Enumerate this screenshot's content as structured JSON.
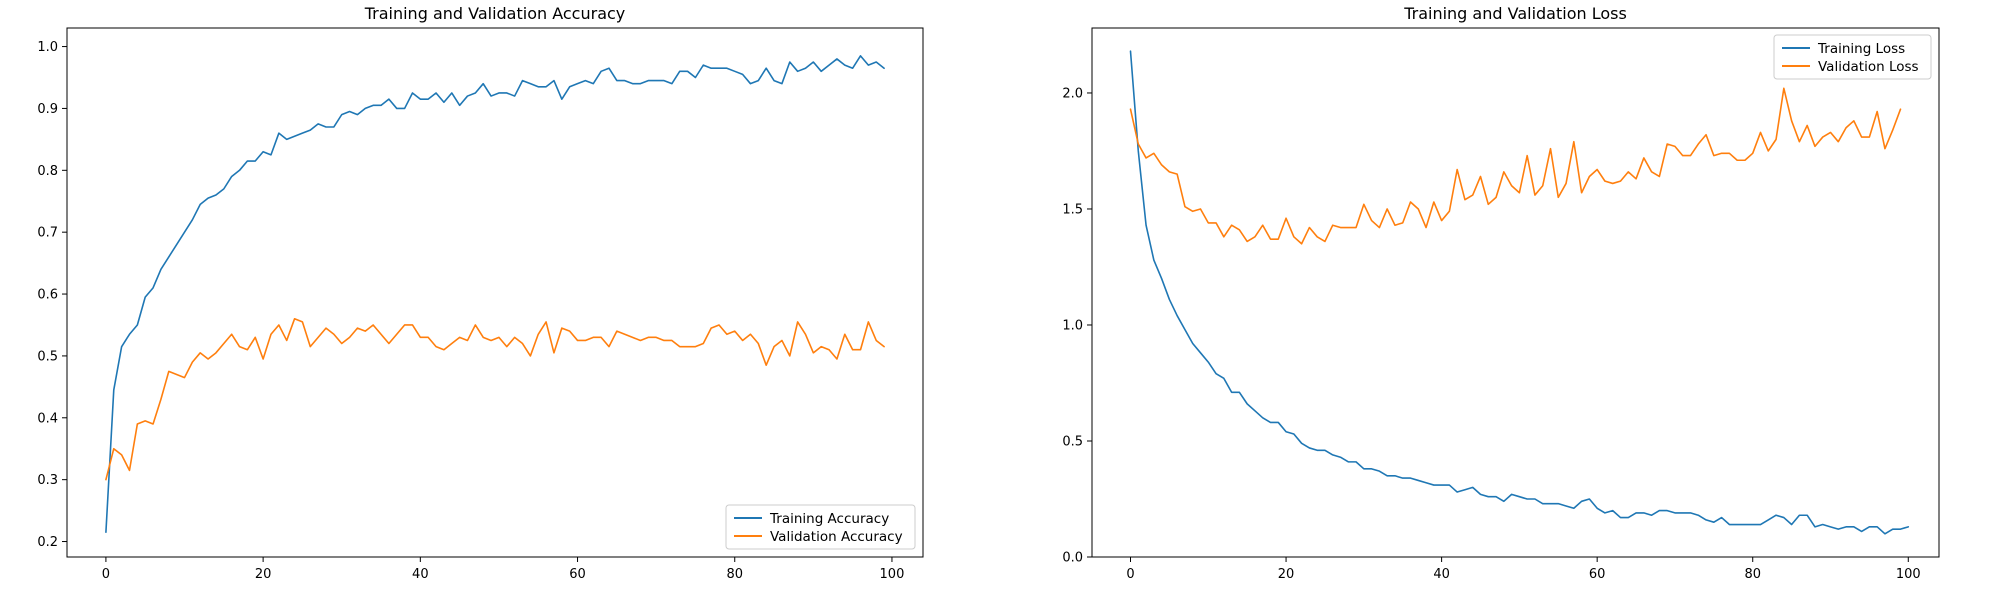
{
  "chart_data": [
    {
      "type": "line",
      "title": "Training and Validation Accuracy",
      "xlabel": "",
      "ylabel": "",
      "xlim": [
        -4.95,
        103.95
      ],
      "ylim": [
        0.175,
        1.03
      ],
      "xticks": [
        0,
        20,
        40,
        60,
        80,
        100
      ],
      "yticks": [
        0.2,
        0.3,
        0.4,
        0.5,
        0.6,
        0.7,
        0.8,
        0.9,
        1.0
      ],
      "ytick_labels": [
        "0.2",
        "0.3",
        "0.4",
        "0.5",
        "0.6",
        "0.7",
        "0.8",
        "0.9",
        "1.0"
      ],
      "grid": false,
      "legend_position": "lower-right",
      "series": [
        {
          "name": "Training Accuracy",
          "color": "#1f77b4",
          "values": [
            0.215,
            0.445,
            0.515,
            0.535,
            0.55,
            0.595,
            0.61,
            0.64,
            0.66,
            0.68,
            0.7,
            0.72,
            0.745,
            0.755,
            0.76,
            0.77,
            0.79,
            0.8,
            0.815,
            0.815,
            0.83,
            0.825,
            0.86,
            0.85,
            0.855,
            0.86,
            0.865,
            0.875,
            0.87,
            0.87,
            0.89,
            0.895,
            0.89,
            0.9,
            0.905,
            0.905,
            0.915,
            0.9,
            0.9,
            0.925,
            0.915,
            0.915,
            0.925,
            0.91,
            0.925,
            0.905,
            0.92,
            0.925,
            0.94,
            0.92,
            0.925,
            0.925,
            0.92,
            0.945,
            0.94,
            0.935,
            0.935,
            0.945,
            0.915,
            0.935,
            0.94,
            0.945,
            0.94,
            0.96,
            0.965,
            0.945,
            0.945,
            0.94,
            0.94,
            0.945,
            0.945,
            0.945,
            0.94,
            0.96,
            0.96,
            0.95,
            0.97,
            0.965,
            0.965,
            0.965,
            0.96,
            0.955,
            0.94,
            0.945,
            0.965,
            0.945,
            0.94,
            0.975,
            0.96,
            0.965,
            0.975,
            0.96,
            0.97,
            0.98,
            0.97,
            0.965,
            0.985,
            0.97,
            0.975,
            0.965
          ]
        },
        {
          "name": "Validation Accuracy",
          "color": "#ff7f0e",
          "values": [
            0.3,
            0.35,
            0.34,
            0.315,
            0.39,
            0.395,
            0.39,
            0.43,
            0.475,
            0.47,
            0.465,
            0.49,
            0.505,
            0.495,
            0.505,
            0.52,
            0.535,
            0.515,
            0.51,
            0.53,
            0.495,
            0.535,
            0.55,
            0.525,
            0.56,
            0.555,
            0.515,
            0.53,
            0.545,
            0.535,
            0.52,
            0.53,
            0.545,
            0.54,
            0.55,
            0.535,
            0.52,
            0.535,
            0.55,
            0.55,
            0.53,
            0.53,
            0.515,
            0.51,
            0.52,
            0.53,
            0.525,
            0.55,
            0.53,
            0.525,
            0.53,
            0.515,
            0.53,
            0.52,
            0.5,
            0.535,
            0.555,
            0.505,
            0.545,
            0.54,
            0.525,
            0.525,
            0.53,
            0.53,
            0.515,
            0.54,
            0.535,
            0.53,
            0.525,
            0.53,
            0.53,
            0.525,
            0.525,
            0.515,
            0.515,
            0.515,
            0.52,
            0.545,
            0.55,
            0.535,
            0.54,
            0.525,
            0.535,
            0.52,
            0.485,
            0.515,
            0.525,
            0.5,
            0.555,
            0.535,
            0.505,
            0.515,
            0.51,
            0.495,
            0.535,
            0.51,
            0.51,
            0.555,
            0.525,
            0.515
          ]
        }
      ]
    },
    {
      "type": "line",
      "title": "Training and Validation Loss",
      "xlabel": "",
      "ylabel": "",
      "xlim": [
        -4.95,
        103.95
      ],
      "ylim": [
        0.0,
        2.28
      ],
      "xticks": [
        0,
        20,
        40,
        60,
        80,
        100
      ],
      "yticks": [
        0.0,
        0.5,
        1.0,
        1.5,
        2.0
      ],
      "ytick_labels": [
        "0.0",
        "0.5",
        "1.0",
        "1.5",
        "2.0"
      ],
      "grid": false,
      "legend_position": "upper-right",
      "series": [
        {
          "name": "Training Loss",
          "color": "#1f77b4",
          "values": [
            2.18,
            1.75,
            1.43,
            1.28,
            1.2,
            1.11,
            1.04,
            0.98,
            0.92,
            0.88,
            0.84,
            0.79,
            0.77,
            0.71,
            0.71,
            0.66,
            0.63,
            0.6,
            0.58,
            0.58,
            0.54,
            0.53,
            0.49,
            0.47,
            0.46,
            0.46,
            0.44,
            0.43,
            0.41,
            0.41,
            0.38,
            0.38,
            0.37,
            0.35,
            0.35,
            0.34,
            0.34,
            0.33,
            0.32,
            0.31,
            0.31,
            0.31,
            0.28,
            0.29,
            0.3,
            0.27,
            0.26,
            0.26,
            0.24,
            0.27,
            0.26,
            0.25,
            0.25,
            0.23,
            0.23,
            0.23,
            0.22,
            0.21,
            0.24,
            0.25,
            0.21,
            0.19,
            0.2,
            0.17,
            0.17,
            0.19,
            0.19,
            0.18,
            0.2,
            0.2,
            0.19,
            0.19,
            0.19,
            0.18,
            0.16,
            0.15,
            0.17,
            0.14,
            0.14,
            0.14,
            0.14,
            0.14,
            0.16,
            0.18,
            0.17,
            0.14,
            0.18,
            0.18,
            0.13,
            0.14,
            0.13,
            0.12,
            0.13,
            0.13,
            0.11,
            0.13,
            0.13,
            0.1,
            0.12,
            0.12,
            0.13
          ]
        },
        {
          "name": "Validation Loss",
          "color": "#ff7f0e",
          "values": [
            1.93,
            1.78,
            1.72,
            1.74,
            1.69,
            1.66,
            1.65,
            1.51,
            1.49,
            1.5,
            1.44,
            1.44,
            1.38,
            1.43,
            1.41,
            1.36,
            1.38,
            1.43,
            1.37,
            1.37,
            1.46,
            1.38,
            1.35,
            1.42,
            1.38,
            1.36,
            1.43,
            1.42,
            1.42,
            1.42,
            1.52,
            1.45,
            1.42,
            1.5,
            1.43,
            1.44,
            1.53,
            1.5,
            1.42,
            1.53,
            1.45,
            1.49,
            1.67,
            1.54,
            1.56,
            1.64,
            1.52,
            1.55,
            1.66,
            1.6,
            1.57,
            1.73,
            1.56,
            1.6,
            1.76,
            1.55,
            1.61,
            1.79,
            1.57,
            1.64,
            1.67,
            1.62,
            1.61,
            1.62,
            1.66,
            1.63,
            1.72,
            1.66,
            1.64,
            1.78,
            1.77,
            1.73,
            1.73,
            1.78,
            1.82,
            1.73,
            1.74,
            1.74,
            1.71,
            1.71,
            1.74,
            1.83,
            1.75,
            1.8,
            2.02,
            1.88,
            1.79,
            1.86,
            1.77,
            1.81,
            1.83,
            1.79,
            1.85,
            1.88,
            1.81,
            1.81,
            1.92,
            1.76,
            1.84,
            1.93
          ]
        }
      ]
    }
  ]
}
